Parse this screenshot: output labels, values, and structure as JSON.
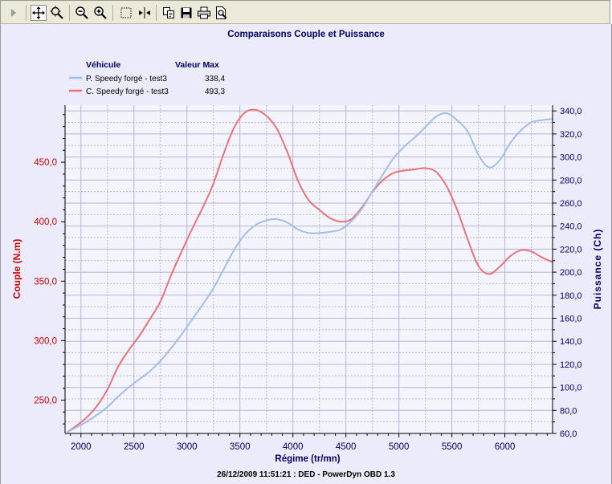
{
  "toolbar": {
    "buttons": [
      {
        "name": "expand-arrow-icon",
        "active": false
      },
      {
        "name": "pan-move-icon",
        "active": true
      },
      {
        "name": "zoom-region-icon",
        "active": false
      },
      {
        "name": "zoom-out-icon",
        "active": false
      },
      {
        "name": "zoom-in-icon",
        "active": false
      },
      {
        "name": "select-rectangle-icon",
        "active": false
      },
      {
        "name": "cursor-marker-icon",
        "active": false
      },
      {
        "name": "copy-icon",
        "active": false
      },
      {
        "name": "save-disk-icon",
        "active": false
      },
      {
        "name": "print-icon",
        "active": false
      },
      {
        "name": "print-preview-icon",
        "active": false
      }
    ]
  },
  "colors": {
    "background": "#ebebfb",
    "plot_bg": "#f4f4fc",
    "grid": "#b4b4dc",
    "couple": "#e8727a",
    "puissance": "#a3bfe8",
    "left_axis_text": "#cc0000",
    "right_axis_text": "#000066",
    "title_text": "#000066"
  },
  "chart_data": {
    "type": "line",
    "title": "Comparaisons Couple et Puissance",
    "xlabel": "Régime (tr/mn)",
    "ylabel_left": "Couple (N.m)",
    "ylabel_right": "Puissance (Ch)",
    "footer": "26/12/2009 11:51:21 : DED - PowerDyn OBD 1.3",
    "xlim": [
      1850,
      6450
    ],
    "ylim_left": [
      222,
      498
    ],
    "ylim_right": [
      60,
      345
    ],
    "x_ticks": [
      "2000",
      "2500",
      "3000",
      "3500",
      "4000",
      "4500",
      "5000",
      "5500",
      "6000"
    ],
    "y_left_ticks": [
      "250,0",
      "300,0",
      "350,0",
      "400,0",
      "450,0"
    ],
    "y_right_ticks": [
      "60,0",
      "80,0",
      "100,0",
      "120,0",
      "140,0",
      "160,0",
      "180,0",
      "200,0",
      "220,0",
      "240,0",
      "260,0",
      "280,0",
      "300,0",
      "320,0",
      "340,0"
    ],
    "grid": true,
    "legend_position": "top-left",
    "legend": {
      "header_vehicle": "Véhicule",
      "header_max": "Valeur Max",
      "entries": [
        {
          "name": "P. Speedy forgé - test3",
          "max": "338,4"
        },
        {
          "name": "C. Speedy forgé - test3",
          "max": "493,3"
        }
      ]
    },
    "series": [
      {
        "name": "C. Speedy forgé - test3",
        "axis": "left",
        "points": [
          [
            1870,
            223
          ],
          [
            1950,
            228
          ],
          [
            2050,
            235
          ],
          [
            2150,
            245
          ],
          [
            2250,
            259
          ],
          [
            2350,
            278
          ],
          [
            2450,
            292
          ],
          [
            2550,
            304
          ],
          [
            2650,
            318
          ],
          [
            2750,
            333
          ],
          [
            2850,
            355
          ],
          [
            2950,
            375
          ],
          [
            3050,
            394
          ],
          [
            3150,
            412
          ],
          [
            3250,
            432
          ],
          [
            3350,
            458
          ],
          [
            3450,
            480
          ],
          [
            3550,
            492
          ],
          [
            3650,
            494
          ],
          [
            3750,
            489
          ],
          [
            3850,
            478
          ],
          [
            3950,
            458
          ],
          [
            4050,
            434
          ],
          [
            4150,
            418
          ],
          [
            4250,
            410
          ],
          [
            4350,
            403
          ],
          [
            4450,
            400
          ],
          [
            4550,
            402
          ],
          [
            4650,
            412
          ],
          [
            4750,
            425
          ],
          [
            4850,
            435
          ],
          [
            4950,
            441
          ],
          [
            5050,
            443
          ],
          [
            5150,
            444
          ],
          [
            5250,
            445
          ],
          [
            5350,
            442
          ],
          [
            5450,
            430
          ],
          [
            5550,
            410
          ],
          [
            5650,
            385
          ],
          [
            5750,
            363
          ],
          [
            5850,
            356
          ],
          [
            5950,
            362
          ],
          [
            6050,
            371
          ],
          [
            6150,
            376
          ],
          [
            6250,
            375
          ],
          [
            6350,
            370
          ],
          [
            6450,
            366
          ]
        ]
      },
      {
        "name": "P. Speedy forgé - test3",
        "axis": "right",
        "points": [
          [
            1870,
            61
          ],
          [
            1950,
            65
          ],
          [
            2050,
            70
          ],
          [
            2150,
            76
          ],
          [
            2250,
            83
          ],
          [
            2350,
            92
          ],
          [
            2450,
            100
          ],
          [
            2550,
            107
          ],
          [
            2650,
            114
          ],
          [
            2750,
            123
          ],
          [
            2850,
            134
          ],
          [
            2950,
            146
          ],
          [
            3050,
            159
          ],
          [
            3150,
            172
          ],
          [
            3250,
            186
          ],
          [
            3350,
            203
          ],
          [
            3450,
            220
          ],
          [
            3550,
            233
          ],
          [
            3650,
            241
          ],
          [
            3750,
            245
          ],
          [
            3850,
            246
          ],
          [
            3950,
            243
          ],
          [
            4050,
            237
          ],
          [
            4150,
            234
          ],
          [
            4250,
            234
          ],
          [
            4350,
            235
          ],
          [
            4450,
            237
          ],
          [
            4550,
            244
          ],
          [
            4650,
            255
          ],
          [
            4750,
            270
          ],
          [
            4850,
            285
          ],
          [
            4950,
            299
          ],
          [
            5050,
            309
          ],
          [
            5150,
            317
          ],
          [
            5250,
            326
          ],
          [
            5350,
            335
          ],
          [
            5450,
            338
          ],
          [
            5550,
            332
          ],
          [
            5650,
            322
          ],
          [
            5750,
            302
          ],
          [
            5850,
            291
          ],
          [
            5950,
            297
          ],
          [
            6050,
            312
          ],
          [
            6150,
            323
          ],
          [
            6250,
            330
          ],
          [
            6350,
            332
          ],
          [
            6450,
            333
          ]
        ]
      }
    ]
  }
}
